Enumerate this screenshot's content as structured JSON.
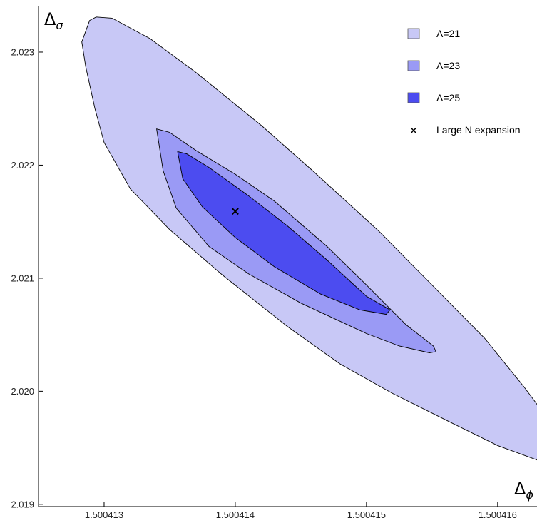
{
  "chart_data": {
    "type": "area",
    "xlabel": "Δ",
    "xlabel_sub": "ϕ",
    "ylabel": "Δ",
    "ylabel_sub": "σ",
    "xlim": [
      1.5004125,
      1.5004163
    ],
    "ylim": [
      2.01898,
      2.02341
    ],
    "x_ticks": [
      1.500413,
      1.500414,
      1.500415,
      1.500416
    ],
    "x_tick_labels": [
      "1.500413",
      "1.500414",
      "1.500415",
      "1.500416"
    ],
    "y_ticks": [
      2.019,
      2.02,
      2.021,
      2.022,
      2.023
    ],
    "y_tick_labels": [
      "2.019",
      "2.020",
      "2.021",
      "2.022",
      "2.023"
    ],
    "grid": false,
    "legend_position": "top-right",
    "series": [
      {
        "name": "Λ=21",
        "color": "#c8c8f6",
        "boundary": [
          [
            1.50041289,
            2.02328
          ],
          [
            1.50041294,
            2.02331
          ],
          [
            1.50041306,
            2.0233
          ],
          [
            1.50041335,
            2.02312
          ],
          [
            1.5004137,
            2.02282
          ],
          [
            1.5004142,
            2.02235
          ],
          [
            1.5004146,
            2.02194
          ],
          [
            1.5004151,
            2.02141
          ],
          [
            1.5004155,
            2.02094
          ],
          [
            1.5004159,
            2.02047
          ],
          [
            1.5004162,
            2.02004
          ],
          [
            1.50041647,
            2.01962
          ],
          [
            1.50041662,
            2.01937
          ],
          [
            1.50041657,
            2.01933
          ],
          [
            1.5004164,
            2.01935
          ],
          [
            1.500416,
            2.01952
          ],
          [
            1.50041565,
            2.01972
          ],
          [
            1.5004152,
            2.01998
          ],
          [
            1.5004148,
            2.02024
          ],
          [
            1.5004144,
            2.02057
          ],
          [
            1.5004139,
            2.02103
          ],
          [
            1.5004135,
            2.02143
          ],
          [
            1.5004132,
            2.02179
          ],
          [
            1.500413,
            2.0222
          ],
          [
            1.50041293,
            2.0225
          ],
          [
            1.50041286,
            2.02287
          ],
          [
            1.50041283,
            2.02309
          ],
          [
            1.50041289,
            2.02328
          ]
        ]
      },
      {
        "name": "Λ=23",
        "color": "#9a9af5",
        "boundary": [
          [
            1.5004134,
            2.02232
          ],
          [
            1.5004135,
            2.02229
          ],
          [
            1.5004137,
            2.02213
          ],
          [
            1.500414,
            2.02192
          ],
          [
            1.5004143,
            2.02168
          ],
          [
            1.5004147,
            2.02128
          ],
          [
            1.500415,
            2.02094
          ],
          [
            1.5004153,
            2.02059
          ],
          [
            1.50041551,
            2.0204
          ],
          [
            1.50041553,
            2.02035
          ],
          [
            1.50041548,
            2.02034
          ],
          [
            1.50041525,
            2.0204
          ],
          [
            1.500415,
            2.02051
          ],
          [
            1.5004145,
            2.02078
          ],
          [
            1.5004141,
            2.02104
          ],
          [
            1.5004138,
            2.02128
          ],
          [
            1.50041355,
            2.02162
          ],
          [
            1.50041345,
            2.02195
          ],
          [
            1.5004134,
            2.02232
          ]
        ]
      },
      {
        "name": "Λ=25",
        "color": "#4c4cf0",
        "boundary": [
          [
            1.50041356,
            2.02212
          ],
          [
            1.50041363,
            2.0221
          ],
          [
            1.5004138,
            2.02198
          ],
          [
            1.5004141,
            2.02173
          ],
          [
            1.5004144,
            2.02146
          ],
          [
            1.5004147,
            2.02116
          ],
          [
            1.500415,
            2.02084
          ],
          [
            1.50041518,
            2.02072
          ],
          [
            1.50041515,
            2.02068
          ],
          [
            1.50041495,
            2.02072
          ],
          [
            1.50041465,
            2.02086
          ],
          [
            1.5004143,
            2.0211
          ],
          [
            1.500414,
            2.02136
          ],
          [
            1.50041375,
            2.02163
          ],
          [
            1.5004136,
            2.02188
          ],
          [
            1.50041356,
            2.02212
          ]
        ]
      }
    ],
    "points": [
      {
        "name": "Large N expansion",
        "marker": "×",
        "x": 1.500414,
        "y": 2.02159
      }
    ]
  }
}
